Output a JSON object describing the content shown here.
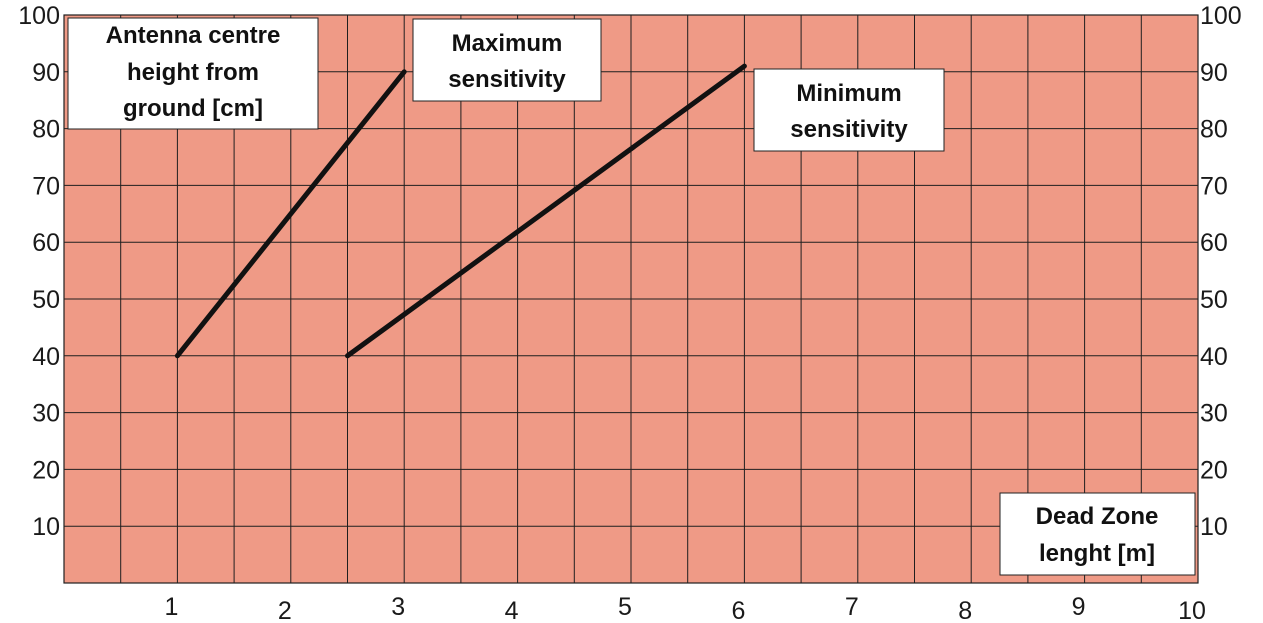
{
  "chart_data": {
    "type": "line",
    "title": "",
    "xlabel": [
      "Dead Zone",
      "lenght [m]"
    ],
    "ylabel": [
      "Antenna centre",
      "height  from",
      "ground [cm]"
    ],
    "xlim": [
      0,
      10
    ],
    "ylim": [
      0,
      100
    ],
    "x_ticks": [
      1,
      2,
      3,
      4,
      5,
      6,
      7,
      8,
      9,
      10
    ],
    "y_ticks": [
      10,
      20,
      30,
      40,
      50,
      60,
      70,
      80,
      90,
      100
    ],
    "grid": true,
    "series": [
      {
        "name": [
          "Maximum",
          "sensitivity"
        ],
        "x": [
          1.0,
          3.0
        ],
        "y": [
          40,
          90
        ]
      },
      {
        "name": [
          "Minimum",
          "sensitivity"
        ],
        "x": [
          2.5,
          6.0
        ],
        "y": [
          40,
          91
        ]
      }
    ]
  },
  "colors": {
    "plot_background": "#ef9a86",
    "grid_line": "#1f1f1f",
    "series_line": "#111111",
    "label_box": "#ffffff"
  }
}
